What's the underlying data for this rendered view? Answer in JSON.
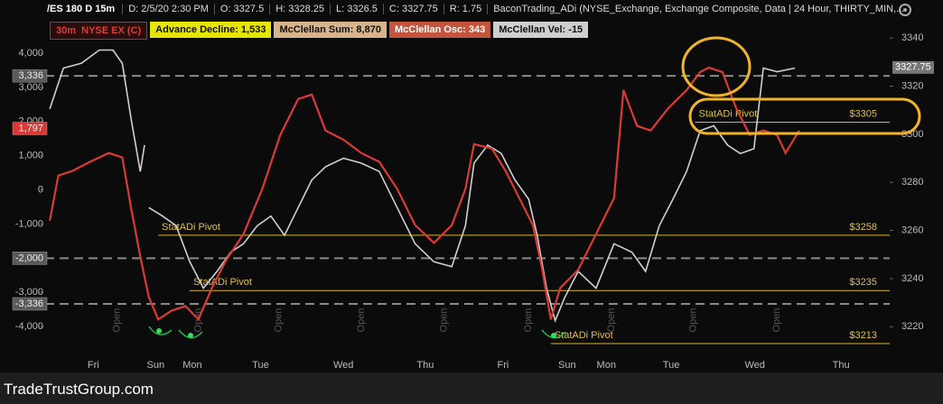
{
  "chart_data": {
    "type": "line",
    "timeframe": "30m",
    "header": [
      "D: 2/5/20 2:30 PM",
      "O: 3327.5",
      "H: 3328.25",
      "L: 3326.5",
      "C: 3327.75",
      "R: 1.75",
      "BaconTrading_ADi (NYSE_Exchange, Exchange Composite, Data | 24 Hour, THIRTY_MIN,..."
    ],
    "chips": [
      "Advance Decline: 1,533",
      "McClellan Sum: 8,870",
      "McClellan Osc: 343",
      "McClellan Vel: -15"
    ],
    "chip_colors": [
      "#e6e600",
      "#d8b48c",
      "#c4553c",
      "#cfcfcf"
    ],
    "xlim": [
      0,
      100
    ],
    "xticks": [
      {
        "value": 6.7,
        "label": "Fri"
      },
      {
        "value": 14,
        "label": "Sun"
      },
      {
        "value": 18.3,
        "label": "Mon"
      },
      {
        "value": 26.3,
        "label": "Tue"
      },
      {
        "value": 36,
        "label": "Wed"
      },
      {
        "value": 45.6,
        "label": "Thu"
      },
      {
        "value": 54.7,
        "label": "Fri"
      },
      {
        "value": 62.2,
        "label": "Sun"
      },
      {
        "value": 66.8,
        "label": "Mon"
      },
      {
        "value": 74.4,
        "label": "Tue"
      },
      {
        "value": 84.2,
        "label": "Wed"
      },
      {
        "value": 94.3,
        "label": "Thu"
      }
    ],
    "ylim": [
      -4920,
      5030
    ],
    "yticks": [
      {
        "value": 4000,
        "label": "4,000"
      },
      {
        "value": 3000,
        "label": "3,000"
      },
      {
        "value": 2000,
        "label": "2,000"
      },
      {
        "value": 1000,
        "label": "1,000"
      },
      0,
      {
        "value": -1000,
        "label": "-1,000"
      },
      {
        "value": -2000,
        "label": "-2,000"
      },
      {
        "value": -3000,
        "label": "-3,000"
      },
      {
        "value": -4000,
        "label": "-4,000"
      }
    ],
    "y2lim": [
      3207,
      3348.3
    ],
    "y2ticks": [
      3340,
      3320,
      3300,
      3280,
      3260,
      3240,
      3220
    ],
    "series": [
      {
        "name": "/ES 180 D 15m",
        "color": "#cfcfcf",
        "axis": "y2",
        "x": [
          1.6,
          3.2,
          5.3,
          7.4,
          9.0,
          10.1,
          11.1,
          12.2,
          12.7,
          13.0,
          13.2,
          14.8,
          16.4,
          18.0,
          19.6,
          21.2,
          22.8,
          24.3,
          25.9,
          27.5,
          29.1,
          30.7,
          32.3,
          33.9,
          36.0,
          38.1,
          40.2,
          42.3,
          44.4,
          46.6,
          48.7,
          50.3,
          51.3,
          52.9,
          54.5,
          56.1,
          57.7,
          58.7,
          59.8,
          60.8,
          61.9,
          63.5,
          65.6,
          67.7,
          69.8,
          71.4,
          73.0,
          74.6,
          76.2,
          77.8,
          79.4,
          81.0,
          82.5,
          84.1,
          85.2,
          86.8,
          88.9
        ],
        "values": [
          3310.5,
          3327.5,
          3329.5,
          3335,
          3335,
          3329.5,
          3307,
          3284.5,
          3295.5,
          null,
          3269.5,
          3266,
          3262,
          3247,
          3236,
          3243,
          3251,
          3254.5,
          3262,
          3266,
          3258,
          3269.5,
          3281,
          3286.5,
          3290,
          3288,
          3284.5,
          3269.5,
          3254.5,
          3247,
          3245,
          3262,
          3288,
          3295.5,
          3292,
          3281,
          3273,
          3258,
          3236,
          3222.5,
          3232,
          3243,
          3236,
          3254.5,
          3251,
          3243,
          3262,
          3273,
          3284.5,
          3301.5,
          3303.5,
          3295.5,
          3292,
          3294,
          3327.5,
          3326,
          3327.5
        ]
      },
      {
        "name": "NYSE EX (C)",
        "color": "#d93a36",
        "axis": "y",
        "x": [
          1.6,
          2.6,
          4.2,
          6.3,
          8.5,
          10.1,
          11.1,
          12.2,
          13.2,
          14.3,
          15.9,
          17.5,
          19.0,
          20.6,
          22.2,
          24.3,
          26.5,
          28.6,
          30.7,
          32.3,
          33.9,
          36.0,
          38.1,
          40.2,
          42.3,
          44.4,
          46.6,
          48.7,
          50.3,
          51.3,
          53.4,
          55.0,
          56.6,
          58.2,
          59.3,
          60.3,
          61.4,
          63.5,
          65.6,
          67.7,
          68.8,
          70.4,
          72.0,
          74.1,
          76.2,
          77.8,
          78.8,
          80.4,
          82.0,
          83.6,
          85.2,
          86.8,
          87.8,
          89.4
        ],
        "values": [
          -900,
          420,
          550,
          820,
          1080,
          950,
          -500,
          -1950,
          -3130,
          -3790,
          -3530,
          -3400,
          -3790,
          -2870,
          -2080,
          -1290,
          30,
          1610,
          2660,
          2790,
          1740,
          1470,
          1080,
          820,
          30,
          -1030,
          -1550,
          -1030,
          30,
          1340,
          1210,
          550,
          -240,
          -1030,
          -2340,
          -3790,
          -2870,
          -2340,
          -1290,
          -240,
          2920,
          1870,
          1740,
          2400,
          2920,
          3450,
          3580,
          3450,
          2400,
          1610,
          1740,
          1610,
          1080,
          1740
        ]
      }
    ],
    "markers": {
      "values": [
        3336,
        1797,
        -2000,
        -3336
      ],
      "value_labels": [
        "3,336",
        "1,797",
        "-2,000",
        "-3,336"
      ],
      "colors": [
        "#5a5a5a",
        "#d93a36",
        "#5a5a5a",
        "#5a5a5a"
      ],
      "dashed": [
        true,
        false,
        true,
        true
      ]
    },
    "last": {
      "value": 3327.75
    },
    "pivots": {
      "label": "StatADi Pivot",
      "values": [
        3305,
        3258,
        3235,
        3213
      ],
      "value_labels": [
        "$3305",
        "$3258",
        "$3235",
        "$3213"
      ],
      "x_start": [
        77.2,
        14.3,
        18.0,
        60.3
      ]
    },
    "open_markers": {
      "label": "Open",
      "x": [
        9.5,
        19.0,
        28.4,
        38.1,
        47.8,
        57.7,
        67.4,
        77.0,
        86.8
      ]
    },
    "watermark": "TradeTrustGroup.com"
  }
}
